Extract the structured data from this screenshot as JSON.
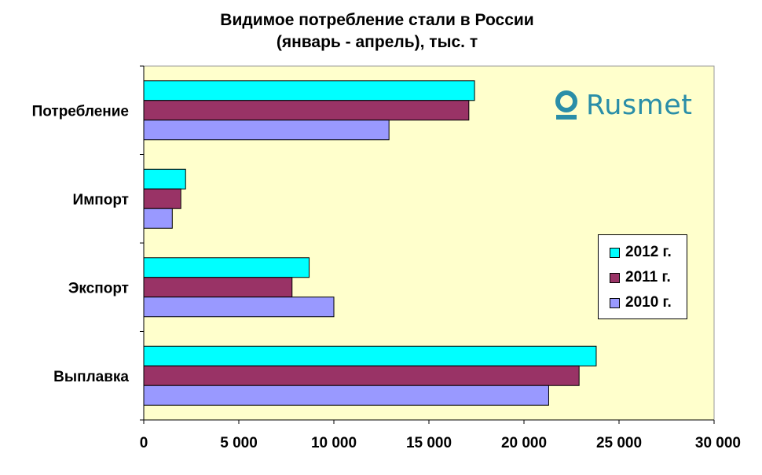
{
  "chart_data": {
    "type": "bar",
    "orientation": "horizontal",
    "title": "Видимое потребление стали в России",
    "subtitle": "(январь - апрель), тыс. т",
    "categories": [
      "Потребление",
      "Импорт",
      "Экспорт",
      "Выплавка"
    ],
    "series": [
      {
        "name": "2012 г.",
        "color": "#00ffff",
        "values": [
          17400,
          2200,
          8700,
          23800
        ]
      },
      {
        "name": "2011 г.",
        "color": "#993366",
        "values": [
          17100,
          1950,
          7800,
          22900
        ]
      },
      {
        "name": "2010 г.",
        "color": "#9999ff",
        "values": [
          12900,
          1500,
          10000,
          21300
        ]
      }
    ],
    "xlim": [
      0,
      30000
    ],
    "xticks": [
      0,
      5000,
      10000,
      15000,
      20000,
      25000,
      30000
    ],
    "xtick_labels": [
      "0",
      "5 000",
      "10 000",
      "15 000",
      "20 000",
      "25 000",
      "30 000"
    ],
    "plot_background": "#ffffcc",
    "grid": false,
    "legend_position": "right"
  },
  "brand": {
    "name": "Rusmet",
    "icon": "rusmet-logo-icon",
    "color": "#2a8ea8"
  }
}
